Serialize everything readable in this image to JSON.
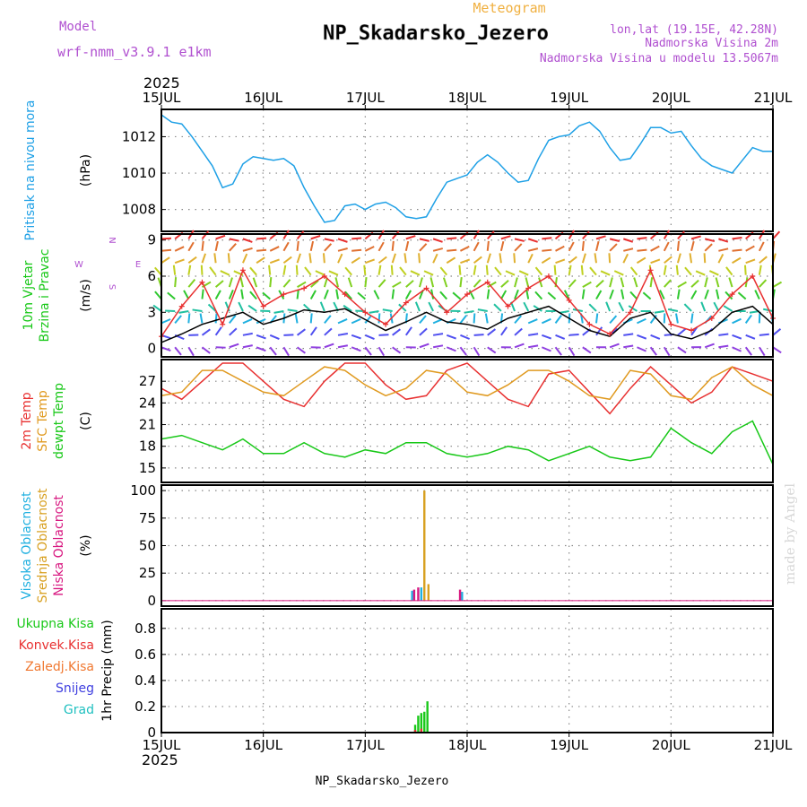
{
  "header": {
    "title": "NP_Skadarsko_Jezero",
    "subtitle": "Meteogram",
    "model_label": "Model",
    "model_name": "wrf-nmm_v3.9.1 e1km",
    "lonlat": "lon,lat (19.15E, 42.28N)",
    "elevation": "Nadmorska Visina 2m",
    "model_elevation": "Nadmorska Visina u modelu 13.5067m",
    "year_top": "2025",
    "year_bottom": "2025",
    "footer": "NP_Skadarsko_Jezero",
    "watermark": "made by Angel"
  },
  "colors": {
    "pressure": "#1ea0e6",
    "wind_speed": "#000000",
    "gust": "#e83030",
    "temp2m": "#e83030",
    "sfc_temp": "#e09a20",
    "dewpoint": "#18c818",
    "high_cloud": "#20b0e0",
    "mid_cloud": "#d8a020",
    "low_cloud": "#d81880",
    "total_precip": "#18c818",
    "conv_precip": "#e83030",
    "grid": "#888888",
    "title_purple": "#b050d0",
    "subtitle_orange": "#f0b040"
  },
  "chart_data": [
    {
      "type": "line",
      "panel": "pressure",
      "ylabel": [
        "Pritisak na nivou mora",
        "(hPa)"
      ],
      "yticks": [
        1008,
        1010,
        1012
      ],
      "ylim": [
        1006.8,
        1013.5
      ],
      "x_labels": [
        "15JUL",
        "16JUL",
        "17JUL",
        "18JUL",
        "19JUL",
        "20JUL",
        "21JUL"
      ],
      "x_days": [
        0,
        1,
        2,
        3,
        4,
        5,
        6
      ],
      "series": [
        {
          "color_key": "pressure",
          "x": [
            0,
            0.1,
            0.2,
            0.3,
            0.4,
            0.5,
            0.6,
            0.7,
            0.8,
            0.9,
            1.0,
            1.1,
            1.2,
            1.3,
            1.4,
            1.5,
            1.6,
            1.7,
            1.8,
            1.9,
            2.0,
            2.1,
            2.2,
            2.3,
            2.4,
            2.5,
            2.6,
            2.7,
            2.8,
            2.9,
            3.0,
            3.1,
            3.2,
            3.3,
            3.4,
            3.5,
            3.6,
            3.7,
            3.8,
            3.9,
            4.0,
            4.1,
            4.2,
            4.3,
            4.4,
            4.5,
            4.6,
            4.7,
            4.8,
            4.9,
            5.0,
            5.1,
            5.2,
            5.3,
            5.4,
            5.5,
            5.6,
            5.7,
            5.8,
            5.9,
            6.0
          ],
          "values": [
            1013.2,
            1012.8,
            1012.7,
            1012.0,
            1011.2,
            1010.4,
            1009.2,
            1009.4,
            1010.5,
            1010.9,
            1010.8,
            1010.7,
            1010.8,
            1010.4,
            1009.2,
            1008.2,
            1007.3,
            1007.4,
            1008.2,
            1008.3,
            1008.0,
            1008.3,
            1008.4,
            1008.1,
            1007.6,
            1007.5,
            1007.6,
            1008.6,
            1009.5,
            1009.7,
            1009.9,
            1010.6,
            1011.0,
            1010.6,
            1010.0,
            1009.5,
            1009.6,
            1010.8,
            1011.8,
            1012.0,
            1012.1,
            1012.6,
            1012.8,
            1012.3,
            1011.4,
            1010.7,
            1010.8,
            1011.6,
            1012.5,
            1012.5,
            1012.2,
            1012.3,
            1011.5,
            1010.8,
            1010.4,
            1010.2,
            1010.0,
            1010.7,
            1011.4,
            1011.2,
            1011.2
          ]
        }
      ]
    },
    {
      "type": "line",
      "panel": "wind",
      "ylabel": [
        "10m Vjetar",
        "Brzina i Pravac",
        "(m/s)"
      ],
      "compass": [
        "N",
        "S",
        "W",
        "E"
      ],
      "yticks": [
        0,
        3,
        6,
        9
      ],
      "ylim": [
        -0.7,
        9.5
      ],
      "barb_levels": [
        0,
        1,
        2,
        3,
        4,
        5,
        6,
        7,
        8,
        9
      ],
      "barb_rows_dir_deg": [
        110,
        75,
        30,
        300,
        350,
        20,
        330,
        30,
        45,
        70
      ],
      "series": [
        {
          "name": "wind_speed",
          "color_key": "wind_speed",
          "x": [
            0,
            0.2,
            0.4,
            0.6,
            0.8,
            1.0,
            1.2,
            1.4,
            1.6,
            1.8,
            2.0,
            2.2,
            2.4,
            2.6,
            2.8,
            3.0,
            3.2,
            3.4,
            3.6,
            3.8,
            4.0,
            4.2,
            4.4,
            4.6,
            4.8,
            5.0,
            5.2,
            5.4,
            5.6,
            5.8,
            6.0
          ],
          "values": [
            0.5,
            1.2,
            2.0,
            2.5,
            3.0,
            2.0,
            2.5,
            3.2,
            3.0,
            3.3,
            2.4,
            1.5,
            2.2,
            3.0,
            2.2,
            2.0,
            1.6,
            2.5,
            3.0,
            3.5,
            2.5,
            1.5,
            1.0,
            2.5,
            3.0,
            1.2,
            0.8,
            1.5,
            3.0,
            3.5,
            2.0
          ]
        },
        {
          "name": "gust",
          "color_key": "gust",
          "x": [
            0,
            0.2,
            0.4,
            0.6,
            0.8,
            1.0,
            1.2,
            1.4,
            1.6,
            1.8,
            2.0,
            2.2,
            2.4,
            2.6,
            2.8,
            3.0,
            3.2,
            3.4,
            3.6,
            3.8,
            4.0,
            4.2,
            4.4,
            4.6,
            4.8,
            5.0,
            5.2,
            5.4,
            5.6,
            5.8,
            6.0
          ],
          "values": [
            1.0,
            3.5,
            5.5,
            2.0,
            6.5,
            3.5,
            4.5,
            5.0,
            6.0,
            4.5,
            3.0,
            2.0,
            3.8,
            5.0,
            3.0,
            4.5,
            5.5,
            3.5,
            5.0,
            6.0,
            4.0,
            2.0,
            1.2,
            3.0,
            6.5,
            2.0,
            1.5,
            2.5,
            4.5,
            6.0,
            2.5
          ]
        }
      ]
    },
    {
      "type": "line",
      "panel": "temperature",
      "ylabel": [
        "2m Temp",
        "SFC Temp",
        "dewpt Temp",
        "(C)"
      ],
      "yticks": [
        15,
        18,
        21,
        24,
        27
      ],
      "ylim": [
        13,
        30
      ],
      "series": [
        {
          "name": "2m Temp",
          "color_key": "temp2m",
          "x": [
            0,
            0.2,
            0.4,
            0.6,
            0.8,
            1.0,
            1.2,
            1.4,
            1.6,
            1.8,
            2.0,
            2.2,
            2.4,
            2.6,
            2.8,
            3.0,
            3.2,
            3.4,
            3.6,
            3.8,
            4.0,
            4.2,
            4.4,
            4.6,
            4.8,
            5.0,
            5.2,
            5.4,
            5.6,
            5.8,
            6.0
          ],
          "values": [
            26,
            24.5,
            27,
            29.5,
            29.5,
            27,
            24.5,
            23.5,
            27,
            29.5,
            29.5,
            26.5,
            24.5,
            25,
            28.5,
            29.5,
            27,
            24.5,
            23.5,
            28,
            28.5,
            25.5,
            22.5,
            26,
            29,
            26.5,
            24,
            25.5,
            29,
            28,
            27
          ]
        },
        {
          "name": "SFC Temp",
          "color_key": "sfc_temp",
          "x": [
            0,
            0.2,
            0.4,
            0.6,
            0.8,
            1.0,
            1.2,
            1.4,
            1.6,
            1.8,
            2.0,
            2.2,
            2.4,
            2.6,
            2.8,
            3.0,
            3.2,
            3.4,
            3.6,
            3.8,
            4.0,
            4.2,
            4.4,
            4.6,
            4.8,
            5.0,
            5.2,
            5.4,
            5.6,
            5.8,
            6.0
          ],
          "values": [
            25,
            25.5,
            28.5,
            28.5,
            27,
            25.5,
            25,
            27,
            29,
            28.5,
            26.5,
            25,
            26,
            28.5,
            28,
            25.5,
            25,
            26.5,
            28.5,
            28.5,
            27,
            25,
            24.5,
            28.5,
            28,
            25,
            24.5,
            27.5,
            29,
            26.5,
            25
          ]
        },
        {
          "name": "dewpt Temp",
          "color_key": "dewpoint",
          "x": [
            0,
            0.2,
            0.4,
            0.6,
            0.8,
            1.0,
            1.2,
            1.4,
            1.6,
            1.8,
            2.0,
            2.2,
            2.4,
            2.6,
            2.8,
            3.0,
            3.2,
            3.4,
            3.6,
            3.8,
            4.0,
            4.2,
            4.4,
            4.6,
            4.8,
            5.0,
            5.2,
            5.4,
            5.6,
            5.8,
            6.0
          ],
          "values": [
            19,
            19.5,
            18.5,
            17.5,
            19,
            17,
            17,
            18.5,
            17,
            16.5,
            17.5,
            17,
            18.5,
            18.5,
            17,
            16.5,
            17,
            18,
            17.5,
            16,
            17,
            18,
            16.5,
            16,
            16.5,
            20.5,
            18.5,
            17,
            20,
            21.5,
            15.5
          ]
        }
      ]
    },
    {
      "type": "bar",
      "panel": "cloud",
      "ylabel": [
        "Visoka Oblacnost",
        "Srednja Oblacnost",
        "Niska Oblacnost",
        "(%)"
      ],
      "yticks": [
        0,
        25,
        50,
        75,
        100
      ],
      "ylim": [
        -5,
        105
      ],
      "series": [
        {
          "name": "Visoka Oblacnost",
          "color_key": "high_cloud",
          "x": [
            2.46,
            2.55,
            2.95
          ],
          "values": [
            9,
            12,
            8
          ]
        },
        {
          "name": "Srednja Oblacnost",
          "color_key": "mid_cloud",
          "x": [
            2.58,
            2.62
          ],
          "values": [
            100,
            15
          ]
        },
        {
          "name": "Niska Oblacnost",
          "color_key": "low_cloud",
          "x": [
            2.48,
            2.52,
            2.93
          ],
          "values": [
            10,
            12,
            10
          ]
        }
      ]
    },
    {
      "type": "bar",
      "panel": "precip",
      "ylabel": [
        "Ukupna Kisa",
        "Konvek.Kisa",
        "Zaledj.Kisa",
        "Snijeg",
        "Grad",
        "1hr Precip (mm)"
      ],
      "yticks": [
        0,
        0.2,
        0.4,
        0.6,
        0.8
      ],
      "yticklabels": [
        "0",
        "0.2",
        "0.4",
        "0.6",
        "0.8"
      ],
      "ylim": [
        0,
        0.95
      ],
      "series": [
        {
          "name": "Ukupna Kisa",
          "color_key": "total_precip",
          "x": [
            2.49,
            2.52,
            2.55,
            2.58,
            2.61
          ],
          "values": [
            0.06,
            0.13,
            0.15,
            0.16,
            0.24
          ]
        },
        {
          "name": "Konvek.Kisa",
          "color_key": "conv_precip",
          "x": [
            2.49,
            2.55
          ],
          "values": [
            0.02,
            0.03
          ]
        }
      ]
    }
  ]
}
